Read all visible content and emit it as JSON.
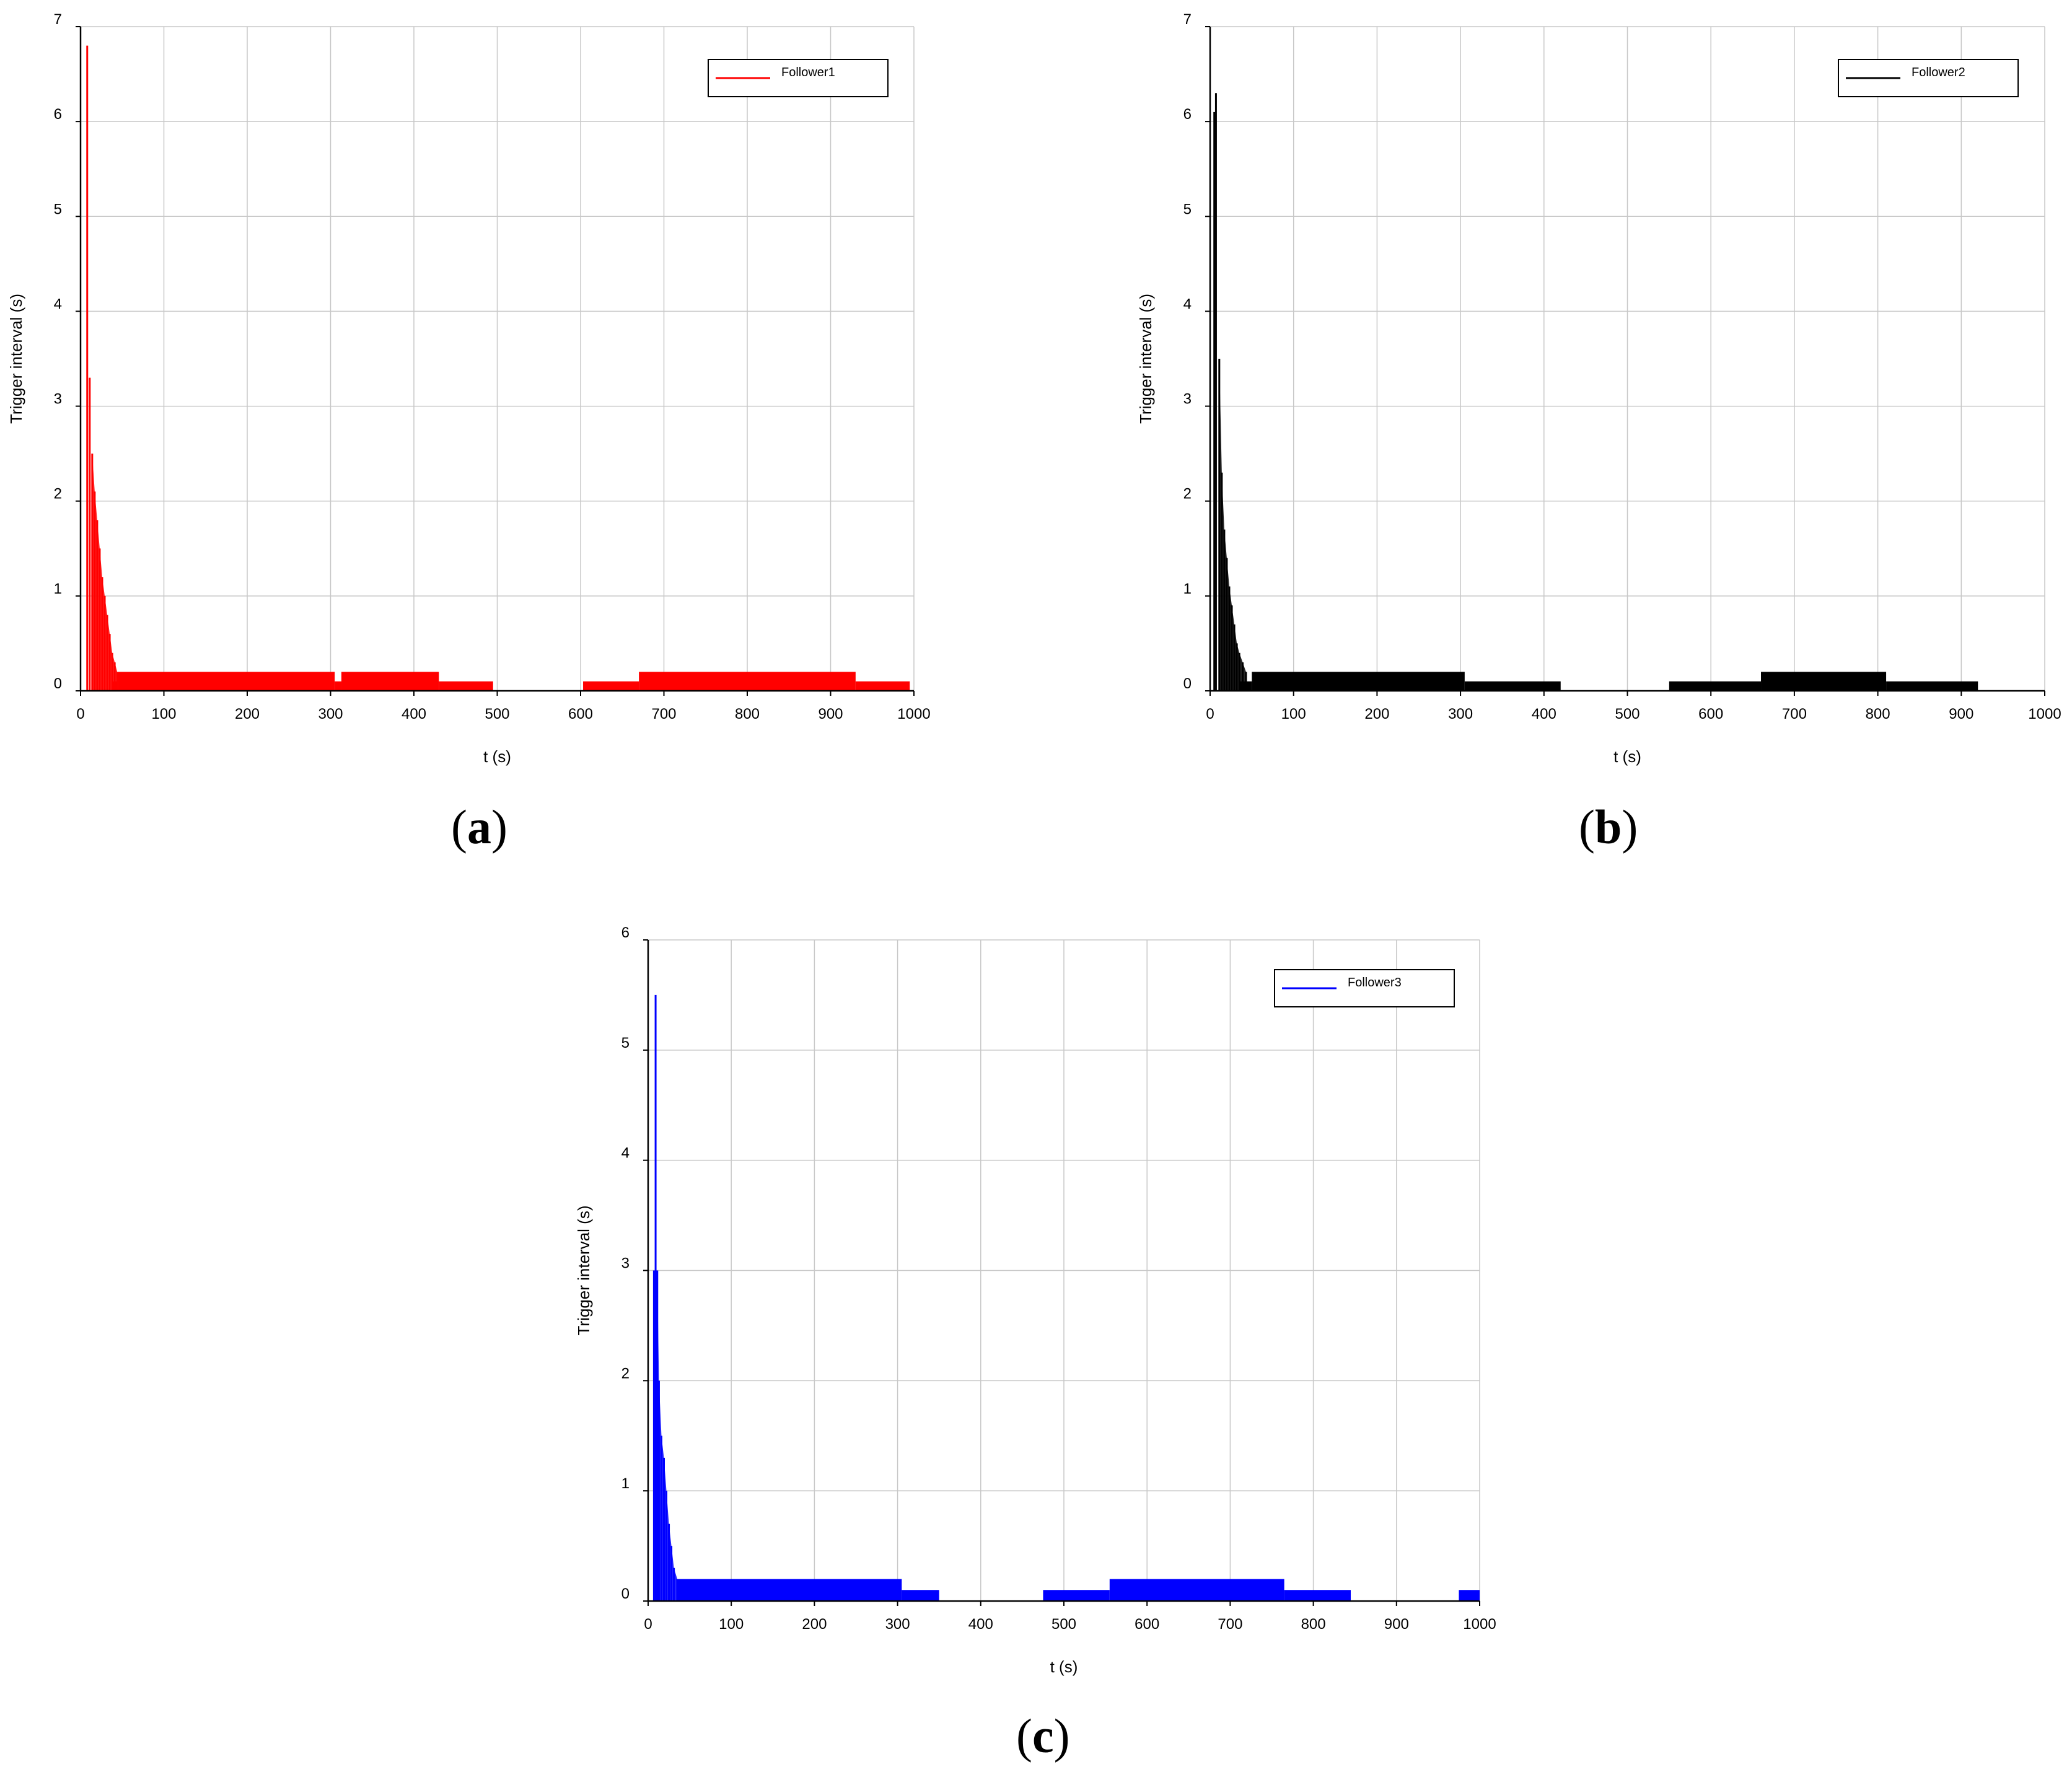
{
  "chart_data": [
    {
      "type": "line",
      "panel_label": "a",
      "legend": "Follower1",
      "color": "#ff0000",
      "xlabel": "t (s)",
      "ylabel": "Trigger interval (s)",
      "xlim": [
        0,
        1000
      ],
      "ylim": [
        0,
        7
      ],
      "xticks": [
        "0",
        "100",
        "200",
        "300",
        "400",
        "500",
        "600",
        "700",
        "800",
        "900",
        "1000"
      ],
      "yticks": [
        "0",
        "1",
        "2",
        "3",
        "4",
        "5",
        "6",
        "7"
      ],
      "grid": true,
      "legend_position": "top-right",
      "spikes": [
        [
          8,
          6.8
        ],
        [
          11,
          3.3
        ],
        [
          14,
          2.5
        ],
        [
          17,
          2.1
        ],
        [
          20,
          1.8
        ],
        [
          23,
          1.5
        ],
        [
          26,
          1.2
        ],
        [
          29,
          1.0
        ],
        [
          32,
          0.8
        ],
        [
          35,
          0.6
        ],
        [
          38,
          0.4
        ],
        [
          41,
          0.3
        ],
        [
          44,
          0.2
        ]
      ],
      "bands": [
        [
          37,
          45,
          0,
          0.1
        ],
        [
          45,
          305,
          0,
          0.2
        ],
        [
          305,
          313,
          0,
          0.1
        ],
        [
          313,
          430,
          0,
          0.2
        ],
        [
          430,
          495,
          0,
          0.1
        ],
        [
          603,
          670,
          0,
          0.1
        ],
        [
          670,
          930,
          0,
          0.2
        ],
        [
          930,
          995,
          0,
          0.1
        ]
      ],
      "flat": [
        [
          495,
          603,
          0
        ]
      ]
    },
    {
      "type": "line",
      "panel_label": "b",
      "legend": "Follower2",
      "color": "#000000",
      "xlabel": "t (s)",
      "ylabel": "Trigger interval (s)",
      "xlim": [
        0,
        1000
      ],
      "ylim": [
        0,
        7
      ],
      "xticks": [
        "0",
        "100",
        "200",
        "300",
        "400",
        "500",
        "600",
        "700",
        "800",
        "900",
        "1000"
      ],
      "yticks": [
        "0",
        "1",
        "2",
        "3",
        "4",
        "5",
        "6",
        "7"
      ],
      "grid": true,
      "legend_position": "top-right",
      "spikes": [
        [
          5,
          6.1
        ],
        [
          7,
          6.3
        ],
        [
          11,
          3.5
        ],
        [
          14,
          2.3
        ],
        [
          17,
          1.7
        ],
        [
          20,
          1.4
        ],
        [
          23,
          1.1
        ],
        [
          26,
          0.9
        ],
        [
          29,
          0.7
        ],
        [
          32,
          0.5
        ],
        [
          35,
          0.4
        ],
        [
          39,
          0.3
        ],
        [
          43,
          0.2
        ]
      ],
      "bands": [
        [
          35,
          50,
          0,
          0.1
        ],
        [
          50,
          305,
          0,
          0.2
        ],
        [
          305,
          420,
          0,
          0.1
        ],
        [
          550,
          660,
          0,
          0.1
        ],
        [
          660,
          810,
          0,
          0.2
        ],
        [
          810,
          920,
          0,
          0.1
        ]
      ],
      "flat": [
        [
          420,
          550,
          0
        ],
        [
          920,
          1000,
          0
        ]
      ]
    },
    {
      "type": "line",
      "panel_label": "c",
      "legend": "Follower3",
      "color": "#0000ff",
      "xlabel": "t (s)",
      "ylabel": "Trigger interval (s)",
      "xlim": [
        0,
        1000
      ],
      "ylim": [
        0,
        6
      ],
      "xticks": [
        "0",
        "100",
        "200",
        "300",
        "400",
        "500",
        "600",
        "700",
        "800",
        "900",
        "1000"
      ],
      "yticks": [
        "0",
        "1",
        "2",
        "3",
        "4",
        "5",
        "6"
      ],
      "grid": true,
      "legend_position": "top-right",
      "spikes": [
        [
          7,
          3.0
        ],
        [
          9,
          5.5
        ],
        [
          11,
          3.0
        ],
        [
          13,
          2.0
        ],
        [
          16,
          1.5
        ],
        [
          19,
          1.3
        ],
        [
          22,
          1.0
        ],
        [
          25,
          0.7
        ],
        [
          28,
          0.5
        ],
        [
          31,
          0.3
        ],
        [
          35,
          0.2
        ]
      ],
      "bands": [
        [
          35,
          305,
          0,
          0.2
        ],
        [
          305,
          350,
          0,
          0.1
        ],
        [
          475,
          555,
          0,
          0.1
        ],
        [
          555,
          765,
          0,
          0.2
        ],
        [
          765,
          845,
          0,
          0.1
        ],
        [
          975,
          1000,
          0,
          0.1
        ]
      ],
      "flat": [
        [
          350,
          475,
          0
        ],
        [
          845,
          975,
          0
        ]
      ]
    }
  ]
}
